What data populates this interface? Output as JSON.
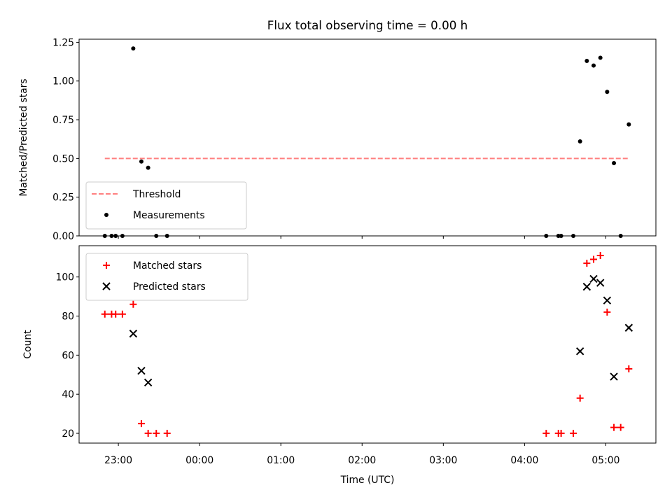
{
  "figure": {
    "title": "Flux total observing time = 0.00 h",
    "xlabel": "Time (UTC)",
    "x_tick_labels": [
      "23:00",
      "00:00",
      "01:00",
      "02:00",
      "03:00",
      "04:00",
      "05:00"
    ]
  },
  "chart_data": [
    {
      "type": "scatter",
      "panel": "top",
      "ylabel": "Matched/Predicted stars",
      "ylim": [
        0,
        1.27
      ],
      "yticks": [
        0.0,
        0.25,
        0.5,
        0.75,
        1.0,
        1.25
      ],
      "ytick_labels": [
        "0.00",
        "0.25",
        "0.50",
        "0.75",
        "1.00",
        "1.25"
      ],
      "xlim": [
        "22:31",
        "05:37"
      ],
      "legend_position": "lower-left",
      "series": [
        {
          "name": "Threshold",
          "kind": "line",
          "style": "dashed",
          "color": "#ff8080",
          "x": [
            "22:50",
            "05:17"
          ],
          "y": [
            0.5,
            0.5
          ]
        },
        {
          "name": "Measurements",
          "kind": "scatter",
          "marker": "dot",
          "color": "#000000",
          "x": [
            "22:50",
            "22:55",
            "22:58",
            "23:03",
            "23:11",
            "23:17",
            "23:22",
            "23:28",
            "23:36",
            "04:16",
            "04:25",
            "04:27",
            "04:36",
            "04:41",
            "04:46",
            "04:51",
            "04:56",
            "05:01",
            "05:06",
            "05:11",
            "05:17"
          ],
          "y": [
            0.0,
            0.0,
            0.0,
            0.0,
            1.21,
            0.48,
            0.44,
            0.0,
            0.0,
            0.0,
            0.0,
            0.0,
            0.0,
            0.61,
            1.13,
            1.1,
            1.15,
            0.93,
            0.47,
            0.0,
            0.72
          ]
        }
      ]
    },
    {
      "type": "scatter",
      "panel": "bottom",
      "ylabel": "Count",
      "ylim": [
        15,
        116
      ],
      "yticks": [
        20,
        40,
        60,
        80,
        100
      ],
      "ytick_labels": [
        "20",
        "40",
        "60",
        "80",
        "100"
      ],
      "xlim": [
        "22:31",
        "05:37"
      ],
      "legend_position": "upper-left",
      "series": [
        {
          "name": "Matched stars",
          "marker": "plus",
          "color": "#ff0000",
          "x": [
            "22:50",
            "22:55",
            "22:58",
            "23:03",
            "23:11",
            "23:17",
            "23:22",
            "23:28",
            "23:36",
            "04:16",
            "04:25",
            "04:27",
            "04:36",
            "04:41",
            "04:46",
            "04:51",
            "04:56",
            "05:01",
            "05:06",
            "05:11",
            "05:17"
          ],
          "y": [
            81,
            81,
            81,
            81,
            86,
            25,
            20,
            20,
            20,
            20,
            20,
            20,
            20,
            38,
            107,
            109,
            111,
            82,
            23,
            23,
            53
          ]
        },
        {
          "name": "Predicted stars",
          "marker": "x",
          "color": "#000000",
          "x": [
            "23:11",
            "23:17",
            "23:22",
            "04:41",
            "04:46",
            "04:51",
            "04:56",
            "05:01",
            "05:06",
            "05:17"
          ],
          "y": [
            71,
            52,
            46,
            62,
            95,
            99,
            97,
            88,
            49,
            74
          ]
        }
      ]
    }
  ]
}
